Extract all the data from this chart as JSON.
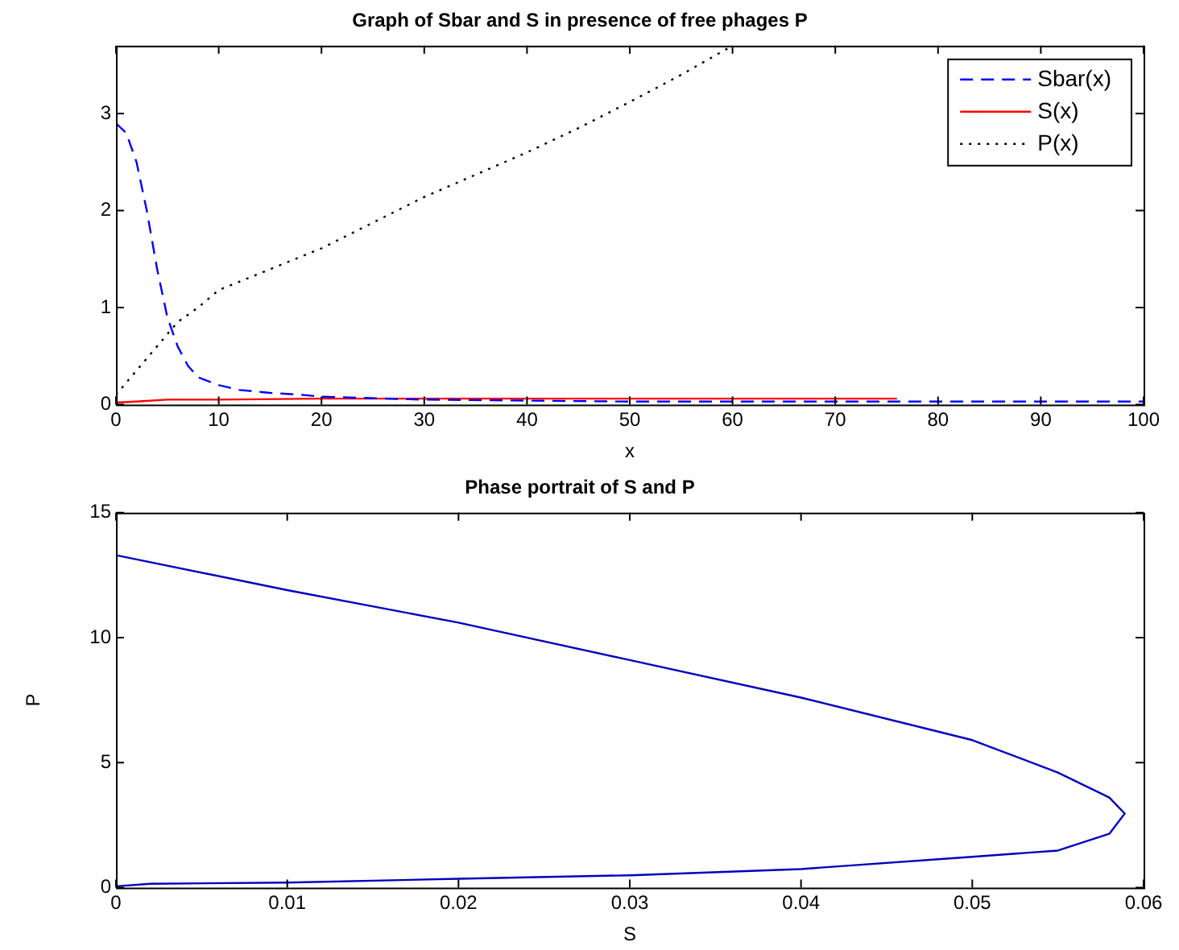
{
  "chart_data": [
    {
      "type": "line",
      "title": "Graph of Sbar and S in presence of free phages P",
      "xlabel": "x",
      "xlim": [
        0,
        100
      ],
      "xticks": [
        0,
        10,
        20,
        30,
        40,
        50,
        60,
        70,
        80,
        90,
        100
      ],
      "ylim": [
        0,
        3.7
      ],
      "yticks": [
        0,
        1,
        2,
        3
      ],
      "legend": "top right",
      "marker": "none",
      "series": [
        {
          "name": "Sbar(x)",
          "color": "#0000ff",
          "line_style": "dashed",
          "x": [
            0,
            1,
            2,
            3,
            4,
            5,
            6,
            7,
            8,
            10,
            12,
            15,
            18,
            20,
            30,
            50,
            100
          ],
          "values": [
            2.9,
            2.8,
            2.5,
            2.0,
            1.4,
            0.9,
            0.6,
            0.4,
            0.28,
            0.2,
            0.15,
            0.12,
            0.1,
            0.08,
            0.05,
            0.03,
            0.03
          ]
        },
        {
          "name": "S(x)",
          "color": "#ff0000",
          "line_style": "solid",
          "x": [
            0,
            2,
            5,
            10,
            20,
            40,
            76
          ],
          "values": [
            0.02,
            0.03,
            0.05,
            0.05,
            0.06,
            0.06,
            0.06
          ]
        },
        {
          "name": "P(x)",
          "color": "#000000",
          "line_style": "dotted",
          "x": [
            0,
            2,
            4,
            6,
            8,
            10,
            20,
            30,
            40,
            45,
            50,
            55,
            60
          ],
          "values": [
            0.1,
            0.35,
            0.6,
            0.85,
            1.0,
            1.18,
            1.61,
            2.14,
            2.6,
            2.85,
            3.12,
            3.4,
            3.7
          ]
        }
      ]
    },
    {
      "type": "line",
      "title": "Phase portrait of S and P",
      "xlabel": "S",
      "ylabel": "P",
      "xlim": [
        0,
        0.06
      ],
      "xticks": [
        0,
        0.01,
        0.02,
        0.03,
        0.04,
        0.05,
        0.06
      ],
      "ylim": [
        0,
        15
      ],
      "yticks": [
        0,
        5,
        10,
        15
      ],
      "legend": false,
      "marker": "none",
      "series": [
        {
          "color": "#0000c0",
          "line_style": "solid",
          "x": [
            0,
            0.01,
            0.02,
            0.03,
            0.04,
            0.05,
            0.055,
            0.058,
            0.0589,
            0.058,
            0.055,
            0.05,
            0.04,
            0.03,
            0.02,
            0.01,
            0.002,
            0
          ],
          "values": [
            13.3,
            11.9,
            10.6,
            9.1,
            7.6,
            5.9,
            4.6,
            3.6,
            2.96,
            2.15,
            1.48,
            1.23,
            0.74,
            0.49,
            0.35,
            0.2,
            0.15,
            0.05
          ]
        }
      ]
    }
  ]
}
